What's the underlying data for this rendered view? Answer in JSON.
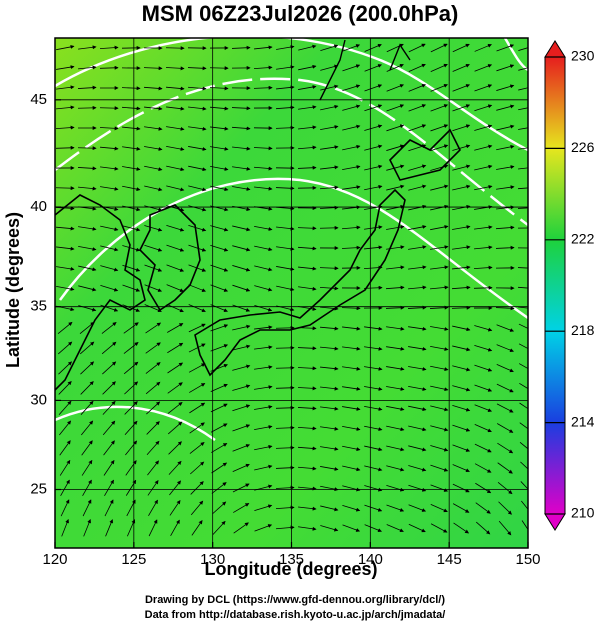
{
  "header": {
    "title": "MSM 06Z23Jul2026 (200.0hPa)"
  },
  "map": {
    "xlabel": "Longitude (degrees)",
    "ylabel": "Latitude  (degrees)",
    "xlim": [
      120,
      150
    ],
    "ylim": [
      21.6,
      47.7
    ],
    "xticks": [
      120,
      125,
      130,
      135,
      140,
      145,
      150
    ],
    "yticks": [
      25,
      30,
      35,
      40,
      45
    ]
  },
  "colorbar": {
    "lim": [
      210,
      230
    ],
    "ticks": [
      210,
      214,
      218,
      222,
      226,
      230
    ],
    "colors": [
      "#e000c8",
      "#1a3ee0",
      "#00d2e6",
      "#1ed23c",
      "#e6e61e",
      "#e61e1e"
    ]
  },
  "footer": {
    "lines": [
      "Drawing by DCL (https://www.gfd-dennou.org/library/dcl/)",
      "Data from http://database.rish.kyoto-u.ac.jp/arch/jmadata/"
    ]
  }
}
